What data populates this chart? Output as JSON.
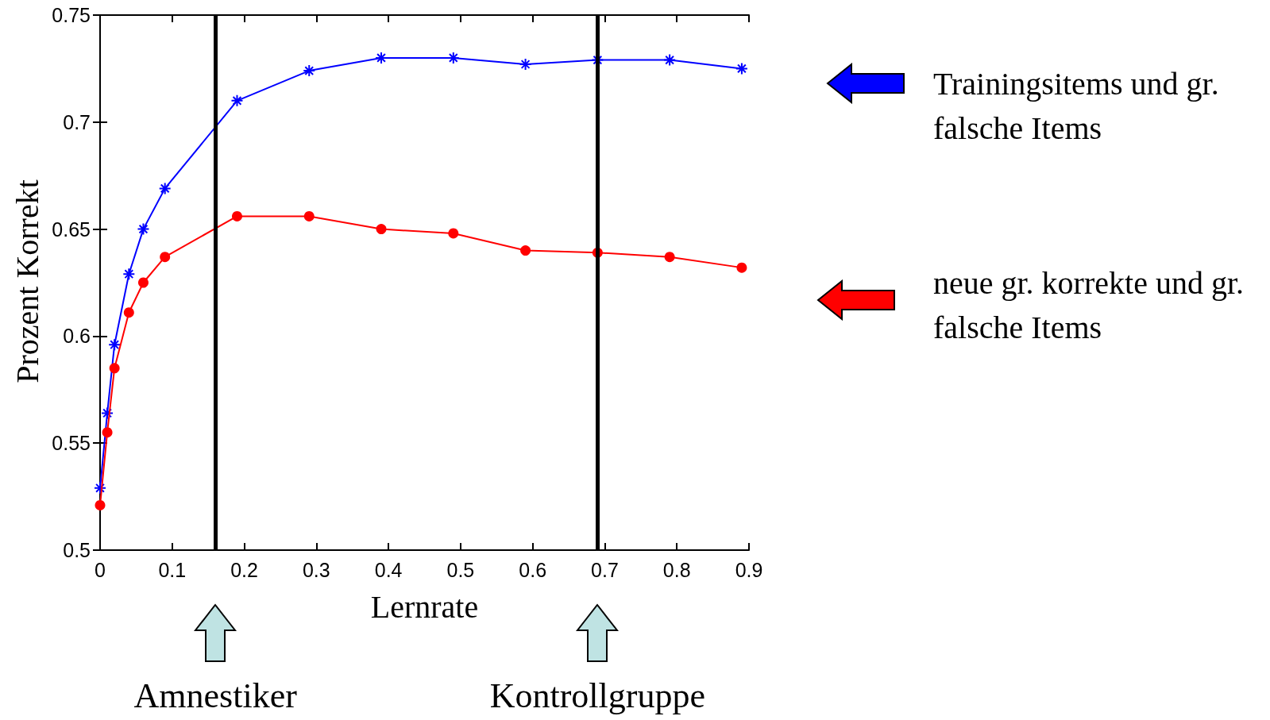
{
  "chart_data": {
    "type": "line",
    "xlabel": "Lernrate",
    "ylabel": "Prozent Korrekt",
    "x": [
      0,
      0.01,
      0.02,
      0.04,
      0.06,
      0.09,
      0.19,
      0.29,
      0.39,
      0.49,
      0.59,
      0.69,
      0.79,
      0.89
    ],
    "series": [
      {
        "name": "Trainingsitems und gr. falsche Items",
        "color": "#0000ff",
        "marker": "cross",
        "values": [
          0.529,
          0.564,
          0.596,
          0.629,
          0.65,
          0.669,
          0.71,
          0.724,
          0.73,
          0.73,
          0.727,
          0.729,
          0.729,
          0.725
        ]
      },
      {
        "name": "neue gr. korrekte und gr. falsche Items",
        "color": "#ff0000",
        "marker": "circle",
        "values": [
          0.521,
          0.555,
          0.585,
          0.611,
          0.625,
          0.637,
          0.656,
          0.656,
          0.65,
          0.648,
          0.64,
          0.639,
          0.637,
          0.632
        ]
      }
    ],
    "xlim": [
      0,
      0.9
    ],
    "xticks": [
      0,
      0.1,
      0.2,
      0.3,
      0.4,
      0.5,
      0.6,
      0.7,
      0.8,
      0.9
    ],
    "ylim": [
      0.5,
      0.75
    ],
    "yticks": [
      0.5,
      0.55,
      0.6,
      0.65,
      0.7,
      0.75
    ],
    "grid": false,
    "legend": "right",
    "line_style": "solid",
    "ref_lines": [
      {
        "axis": "x",
        "value": 0.16,
        "color": "#000000"
      },
      {
        "axis": "x",
        "value": 0.69,
        "color": "#000000"
      }
    ],
    "annotations": [
      "Amnestiker",
      "Kontrollgruppe"
    ]
  }
}
